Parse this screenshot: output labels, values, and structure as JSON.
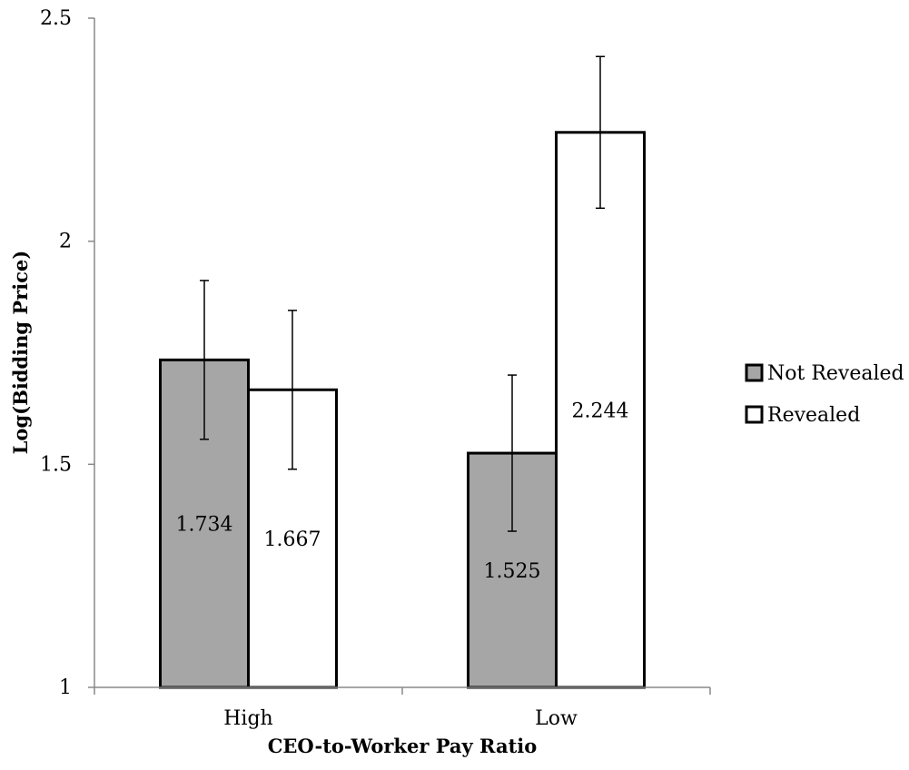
{
  "chart_data": {
    "type": "bar",
    "title": "",
    "xlabel": "CEO-to-Worker Pay Ratio",
    "ylabel": "Log(Bidding Price)",
    "categories": [
      "High",
      "Low"
    ],
    "ylim": [
      1,
      2.5
    ],
    "yticks": [
      "1",
      "1.5",
      "2",
      "2.5"
    ],
    "grid": false,
    "legend_position": "right",
    "series": [
      {
        "name": "Not Revealed",
        "color": "#a6a6a6",
        "values": [
          1.734,
          1.525
        ],
        "labels": [
          "1.734",
          "1.525"
        ],
        "error": [
          0.178,
          0.175
        ]
      },
      {
        "name": "Revealed",
        "color": "#ffffff",
        "values": [
          1.667,
          2.244
        ],
        "labels": [
          "1.667",
          "2.244"
        ],
        "error": [
          0.178,
          0.17
        ]
      }
    ]
  }
}
